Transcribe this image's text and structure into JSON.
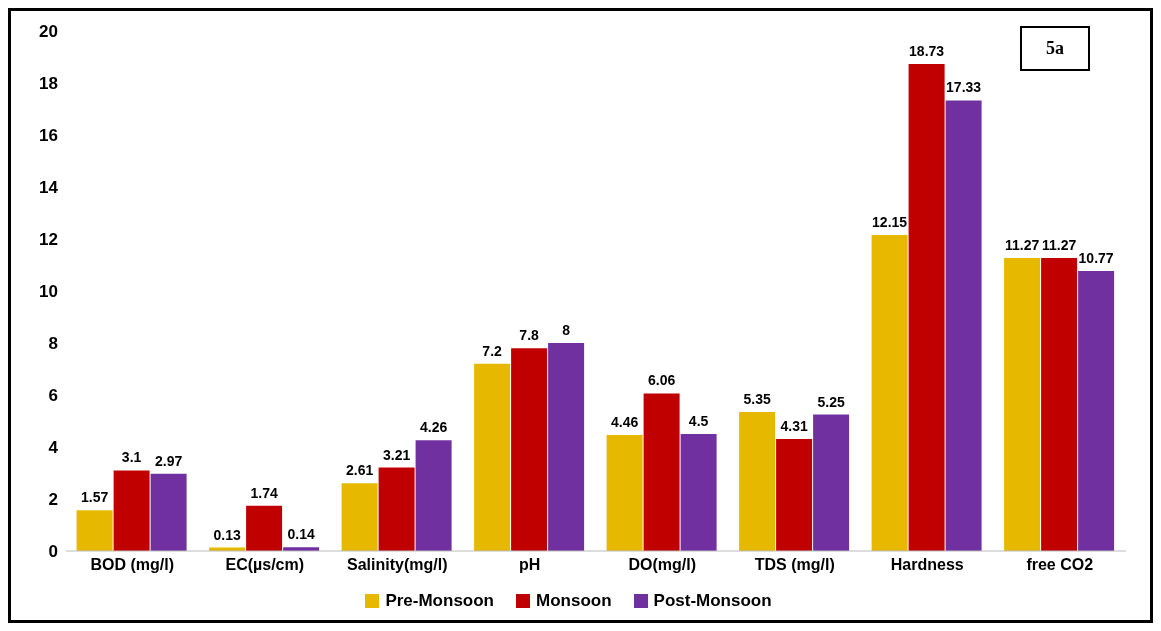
{
  "chart_data": {
    "type": "bar",
    "categories": [
      "BOD (mg/l)",
      "EC(µs/cm)",
      "Salinity(mg/l)",
      "pH",
      "DO(mg/l)",
      "TDS (mg/l)",
      "Hardness",
      "free CO2"
    ],
    "series": [
      {
        "name": "Pre-Monsoon",
        "color": "#e6b800",
        "values": [
          1.57,
          0.13,
          2.61,
          7.2,
          4.46,
          5.35,
          12.15,
          11.27
        ]
      },
      {
        "name": "Monsoon",
        "color": "#c00000",
        "values": [
          3.1,
          1.74,
          3.21,
          7.8,
          6.06,
          4.31,
          18.73,
          11.27
        ]
      },
      {
        "name": "Post-Monsoon",
        "color": "#7030a0",
        "values": [
          2.97,
          0.14,
          4.26,
          8,
          4.5,
          5.25,
          17.33,
          10.77
        ]
      }
    ],
    "ylim": [
      0,
      20
    ],
    "yticks": [
      0,
      2,
      4,
      6,
      8,
      10,
      12,
      14,
      16,
      18,
      20
    ],
    "grid": false,
    "legend": "bottom",
    "data_labels": true,
    "annotations": [
      "5a"
    ]
  }
}
